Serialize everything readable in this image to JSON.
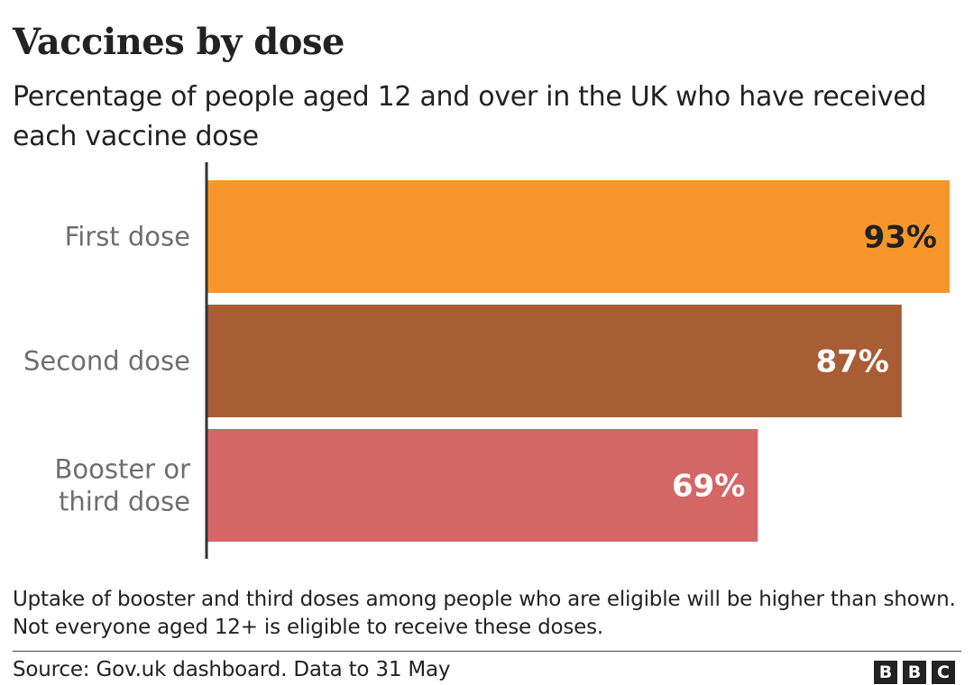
{
  "title": "Vaccines by dose",
  "subtitle": "Percentage of people aged 12 and over in the UK who have received each vaccine dose",
  "footnote": "Uptake of booster and third doses among people who are eligible will be higher than shown. Not everyone aged 12+ is eligible to receive these doses.",
  "source": "Source: Gov.uk dashboard. Data to 31 May",
  "logo": {
    "letters": [
      "B",
      "B",
      "C"
    ]
  },
  "chart_data": {
    "type": "bar",
    "orientation": "horizontal",
    "categories": [
      "First dose",
      "Second dose",
      "Booster or third dose"
    ],
    "category_lines": [
      [
        "First dose"
      ],
      [
        "Second dose"
      ],
      [
        "Booster or",
        "third dose"
      ]
    ],
    "values": [
      93,
      87,
      69
    ],
    "value_labels": [
      "93%",
      "87%",
      "69%"
    ],
    "colors": [
      "#f7972b",
      "#a95d35",
      "#d56666"
    ],
    "label_colors": [
      "#222222",
      "#ffffff",
      "#ffffff"
    ],
    "xlim": [
      0,
      93
    ],
    "grid": false,
    "legend": "none"
  }
}
